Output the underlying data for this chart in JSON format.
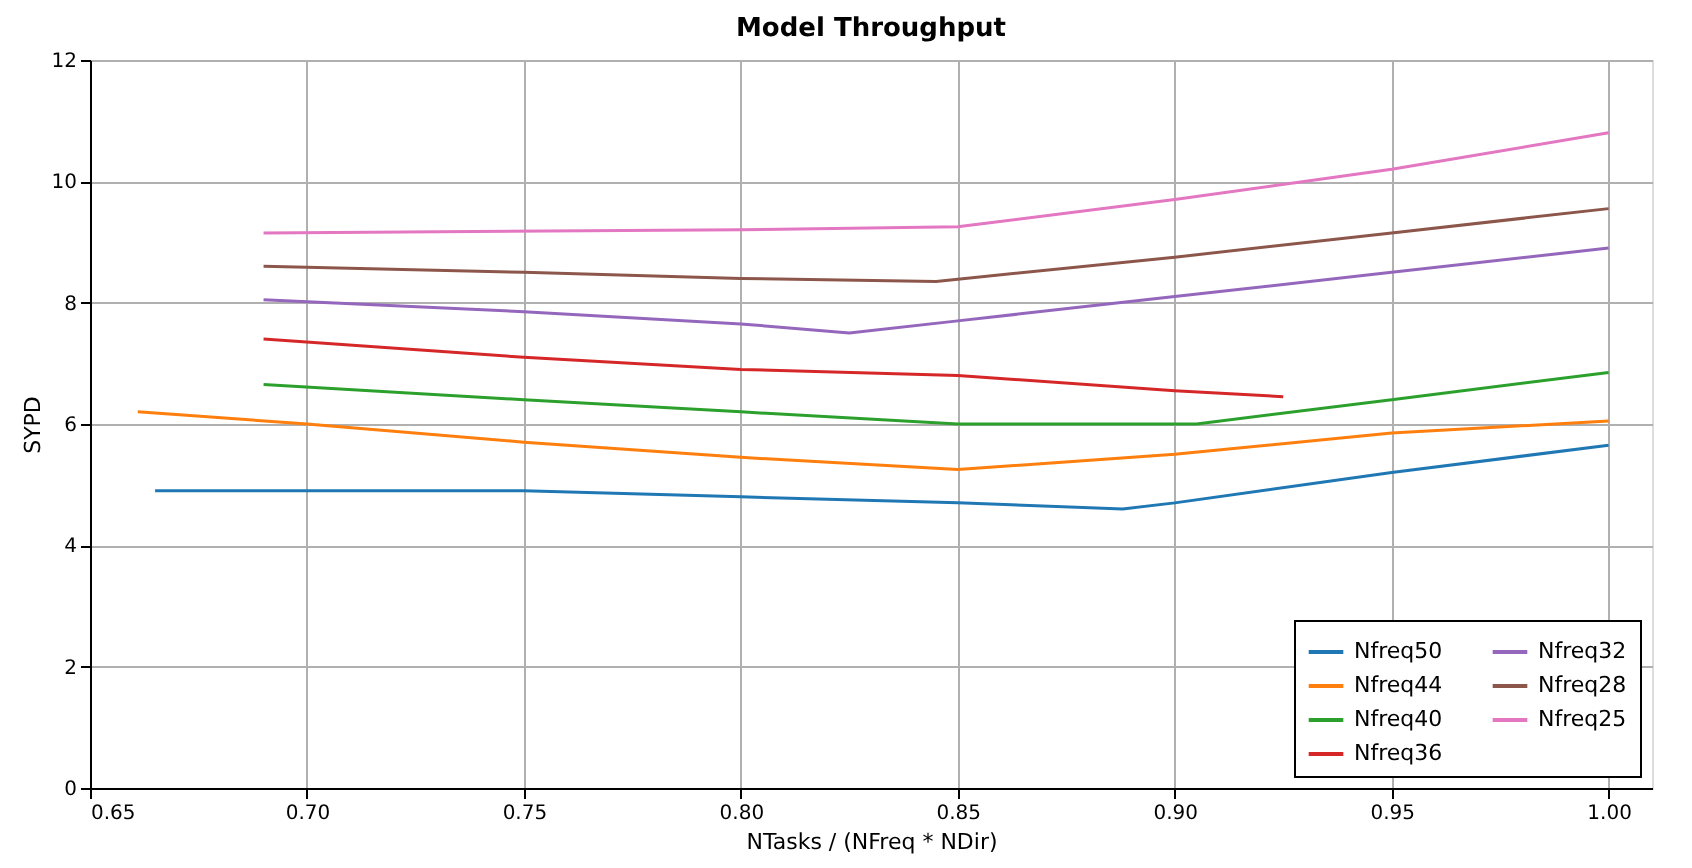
{
  "chart_data": {
    "type": "line",
    "title": "Model Throughput",
    "xlabel": "NTasks / (NFreq * NDir)",
    "ylabel": "SYPD",
    "xlim": [
      0.65,
      1.01
    ],
    "ylim": [
      0,
      12
    ],
    "xticks": [
      {
        "value": 0.65,
        "label": "0.65"
      },
      {
        "value": 0.7,
        "label": "0.70"
      },
      {
        "value": 0.75,
        "label": "0.75"
      },
      {
        "value": 0.8,
        "label": "0.80"
      },
      {
        "value": 0.85,
        "label": "0.85"
      },
      {
        "value": 0.9,
        "label": "0.90"
      },
      {
        "value": 0.95,
        "label": "0.95"
      },
      {
        "value": 1.0,
        "label": "1.00"
      }
    ],
    "yticks": [
      0,
      2,
      4,
      6,
      8,
      10,
      12
    ],
    "grid": true,
    "legend": "bottom right",
    "marker": "none",
    "line_style": "solid",
    "series": [
      {
        "name": "Nfreq50",
        "color": "#1f77b4",
        "x": [
          0.665,
          0.75,
          0.8,
          0.85,
          0.888,
          0.9,
          0.95,
          1.0
        ],
        "values": [
          4.9,
          4.9,
          4.8,
          4.7,
          4.6,
          4.7,
          5.2,
          5.65
        ]
      },
      {
        "name": "Nfreq44",
        "color": "#ff7f0e",
        "x": [
          0.661,
          0.7,
          0.75,
          0.8,
          0.85,
          0.9,
          0.95,
          1.0
        ],
        "values": [
          6.2,
          6.0,
          5.7,
          5.45,
          5.25,
          5.5,
          5.85,
          6.05
        ]
      },
      {
        "name": "Nfreq40",
        "color": "#2ca02c",
        "x": [
          0.69,
          0.75,
          0.8,
          0.85,
          0.905,
          0.95,
          1.0
        ],
        "values": [
          6.65,
          6.4,
          6.2,
          6.0,
          6.0,
          6.4,
          6.85
        ]
      },
      {
        "name": "Nfreq36",
        "color": "#d62728",
        "x": [
          0.69,
          0.75,
          0.8,
          0.85,
          0.9,
          0.925
        ],
        "values": [
          7.4,
          7.1,
          6.9,
          6.8,
          6.55,
          6.45
        ]
      },
      {
        "name": "Nfreq32",
        "color": "#9467bd",
        "x": [
          0.69,
          0.75,
          0.8,
          0.825,
          0.85,
          0.9,
          0.95,
          1.0
        ],
        "values": [
          8.05,
          7.85,
          7.65,
          7.5,
          7.7,
          8.1,
          8.5,
          8.9
        ]
      },
      {
        "name": "Nfreq28",
        "color": "#8c564b",
        "x": [
          0.69,
          0.75,
          0.8,
          0.845,
          0.9,
          0.95,
          1.0
        ],
        "values": [
          8.6,
          8.5,
          8.4,
          8.35,
          8.75,
          9.15,
          9.55
        ]
      },
      {
        "name": "Nfreq25",
        "color": "#e377c2",
        "x": [
          0.69,
          0.8,
          0.85,
          0.9,
          0.95,
          1.0
        ],
        "values": [
          9.15,
          9.2,
          9.25,
          9.7,
          10.2,
          10.8
        ]
      }
    ]
  }
}
